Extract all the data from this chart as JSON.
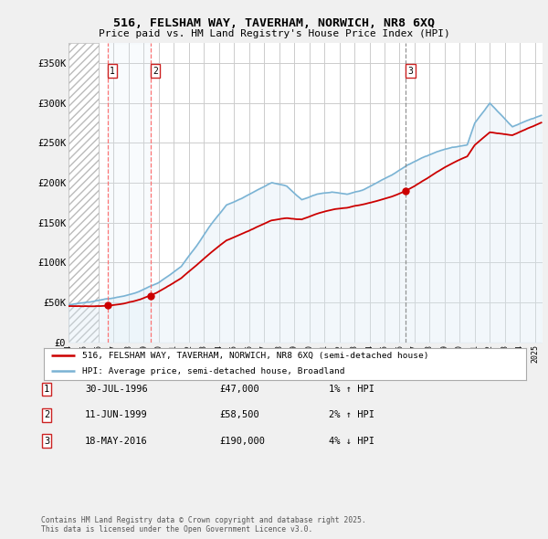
{
  "title": "516, FELSHAM WAY, TAVERHAM, NORWICH, NR8 6XQ",
  "subtitle": "Price paid vs. HM Land Registry's House Price Index (HPI)",
  "legend_line1": "516, FELSHAM WAY, TAVERHAM, NORWICH, NR8 6XQ (semi-detached house)",
  "legend_line2": "HPI: Average price, semi-detached house, Broadland",
  "transactions": [
    {
      "num": 1,
      "date": "30-JUL-1996",
      "price": 47000,
      "pct": "1%",
      "dir": "↑",
      "year": 1996.58
    },
    {
      "num": 2,
      "date": "11-JUN-1999",
      "price": 58500,
      "pct": "2%",
      "dir": "↑",
      "year": 1999.44
    },
    {
      "num": 3,
      "date": "18-MAY-2016",
      "price": 190000,
      "pct": "4%",
      "dir": "↓",
      "year": 2016.38
    }
  ],
  "footer": "Contains HM Land Registry data © Crown copyright and database right 2025.\nThis data is licensed under the Open Government Licence v3.0.",
  "ylim": [
    0,
    375000
  ],
  "yticks": [
    0,
    50000,
    100000,
    150000,
    200000,
    250000,
    300000,
    350000
  ],
  "ytick_labels": [
    "£0",
    "£50K",
    "£100K",
    "£150K",
    "£200K",
    "£250K",
    "£300K",
    "£350K"
  ],
  "background_color": "#f0f0f0",
  "plot_bg_color": "#ffffff",
  "line_color_red": "#cc0000",
  "line_color_blue": "#7ab3d4",
  "fill_color_blue": "#daeaf5",
  "grid_color": "#cccccc",
  "vline_color_red": "#ff6666",
  "vline_color_grey": "#888888",
  "hatch_color": "#e0e0e0",
  "shade_color": "#daeaf5"
}
